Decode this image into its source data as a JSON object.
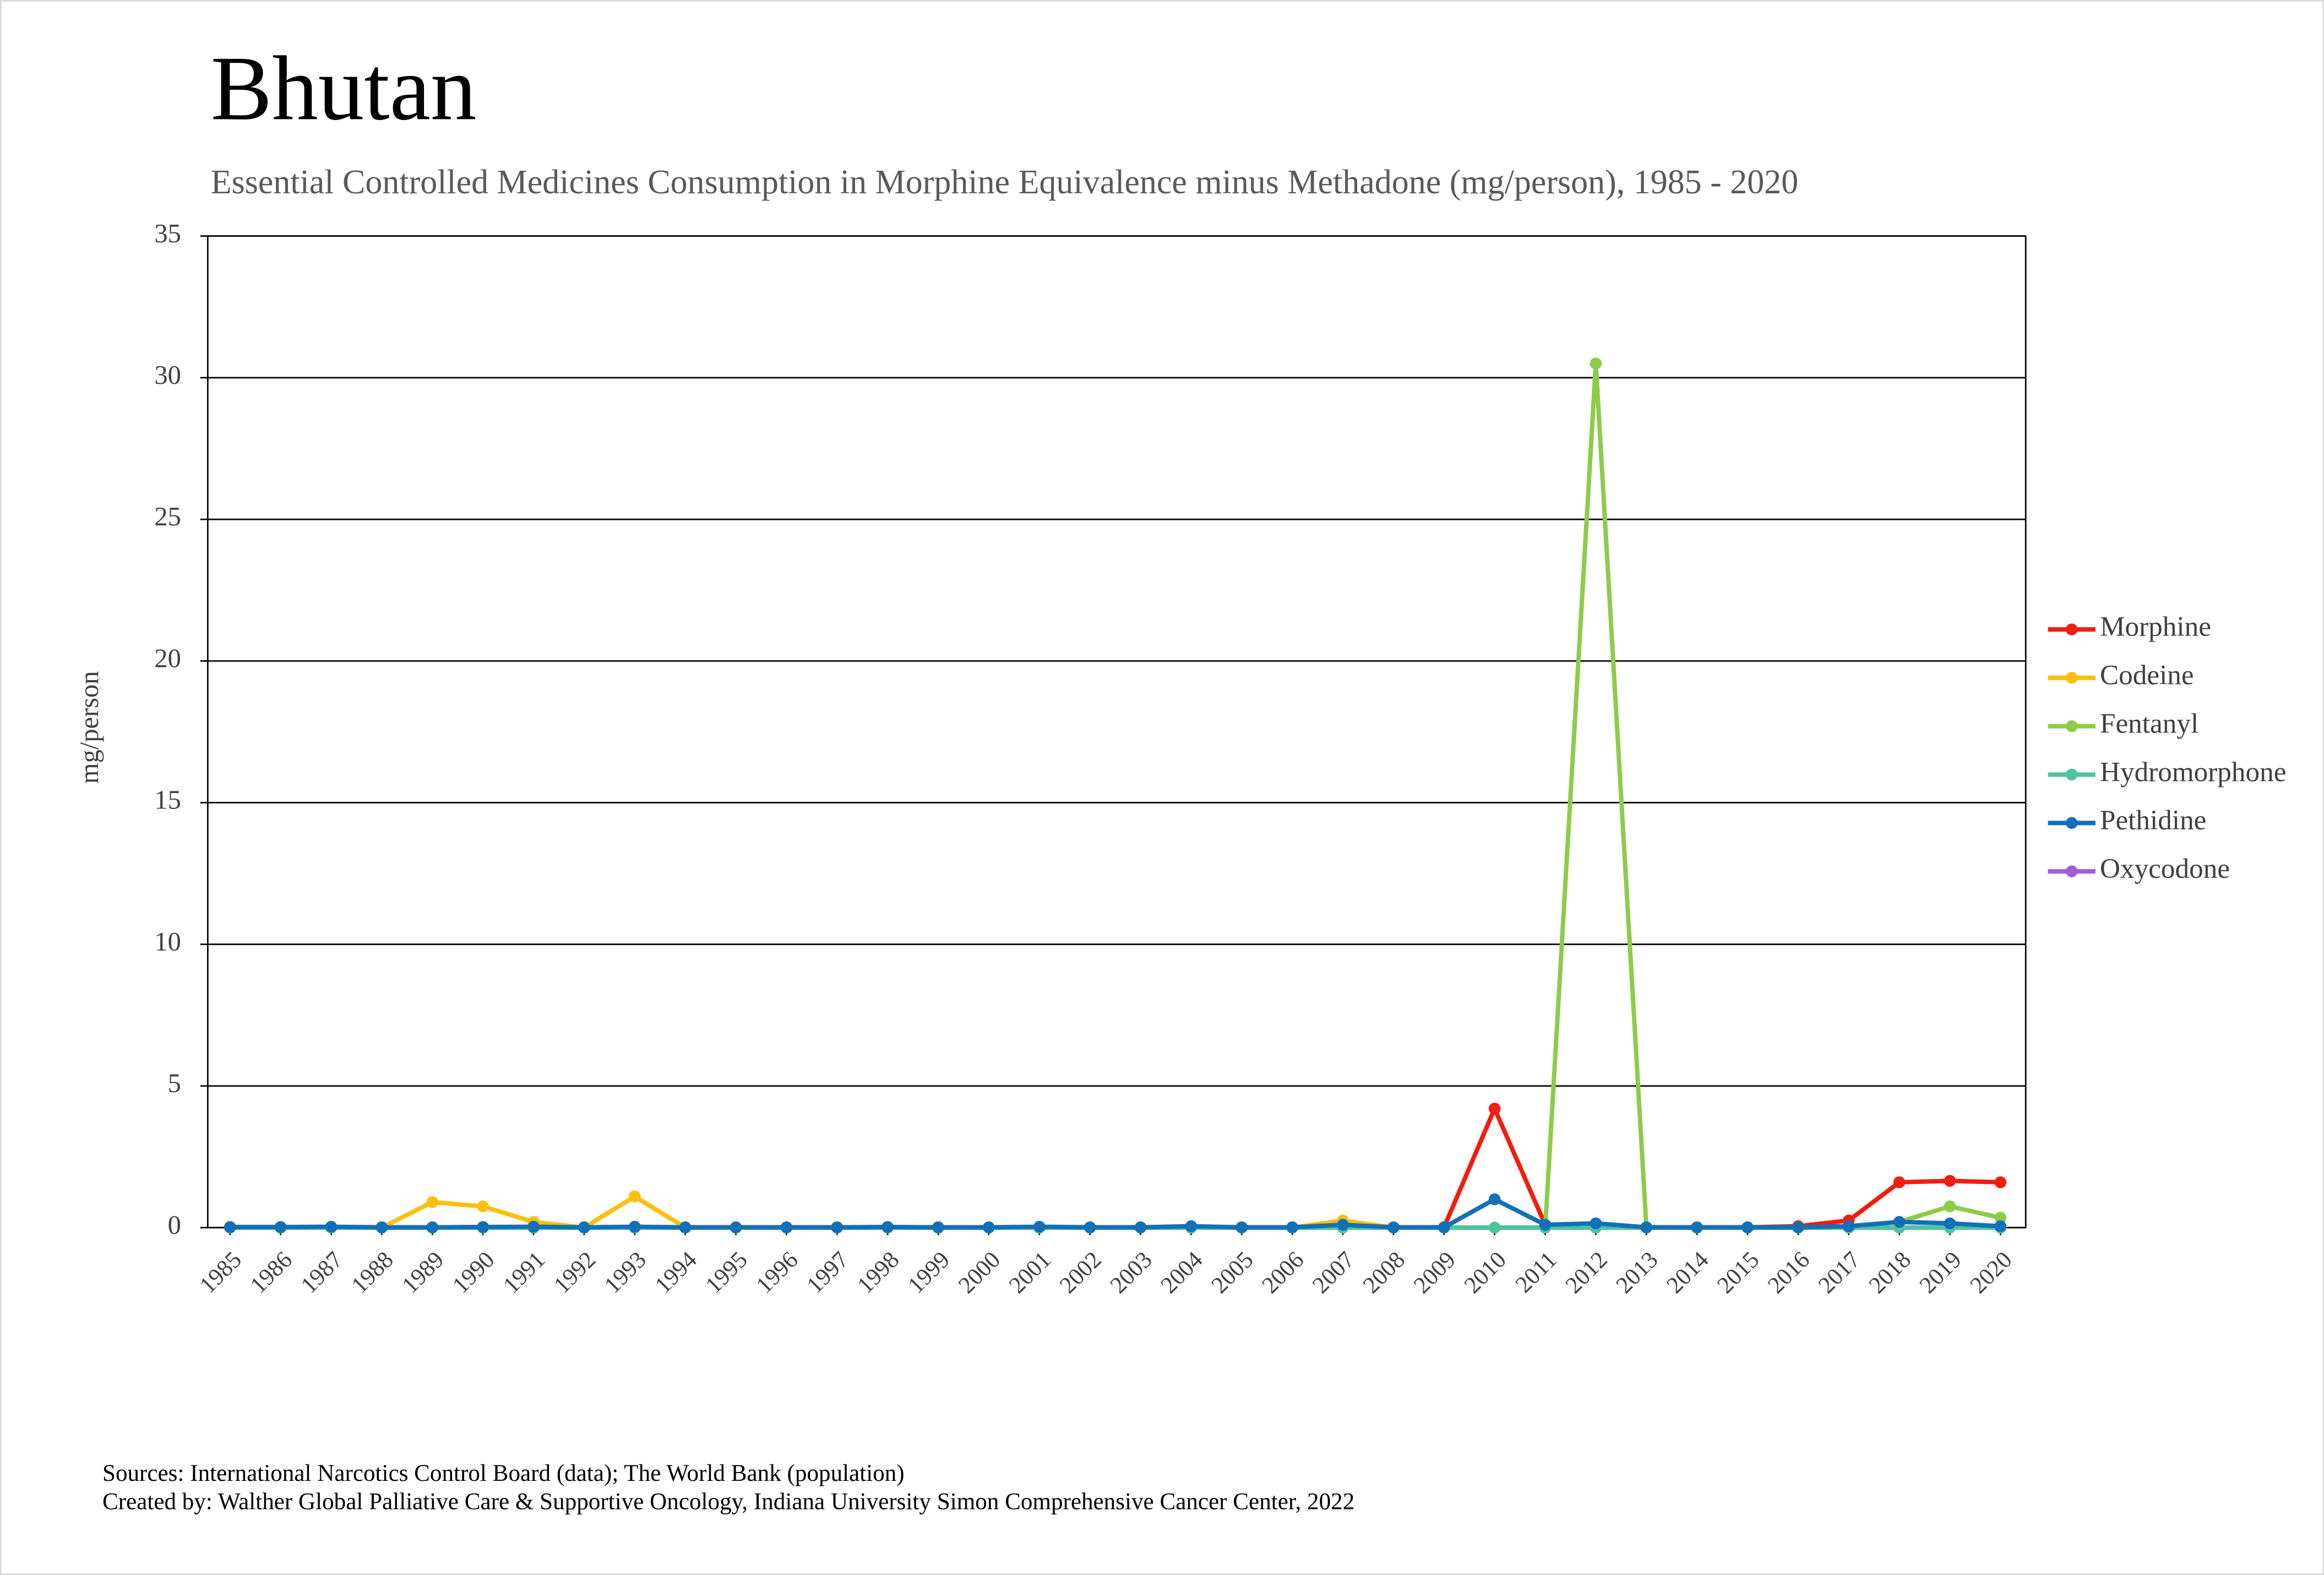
{
  "chart_data": {
    "type": "line",
    "title": "Bhutan",
    "subtitle": "Essential Controlled Medicines Consumption in Morphine Equivalence minus Methadone (mg/person), 1985 - 2020",
    "y_label": "mg/person",
    "categories": [
      "1985",
      "1986",
      "1987",
      "1988",
      "1989",
      "1990",
      "1991",
      "1992",
      "1993",
      "1994",
      "1995",
      "1996",
      "1997",
      "1998",
      "1999",
      "2000",
      "2001",
      "2002",
      "2003",
      "2004",
      "2005",
      "2006",
      "2007",
      "2008",
      "2009",
      "2010",
      "2011",
      "2012",
      "2013",
      "2014",
      "2015",
      "2016",
      "2017",
      "2018",
      "2019",
      "2020"
    ],
    "series": [
      {
        "name": "Morphine",
        "color": "#f01e10",
        "values": [
          0.02,
          0.02,
          0.02,
          0.01,
          0.01,
          0.02,
          0.02,
          0.01,
          0.02,
          0.01,
          0.01,
          0.01,
          0.01,
          0.02,
          0.01,
          0.01,
          0.02,
          0.01,
          0.01,
          0.03,
          0.01,
          0.01,
          0.05,
          0.01,
          0.01,
          4.2,
          0.1,
          0.1,
          0.01,
          0.01,
          0.01,
          0.05,
          0.25,
          1.6,
          1.65,
          1.6
        ]
      },
      {
        "name": "Codeine",
        "color": "#fbbf0e",
        "values": [
          0,
          0,
          0,
          0,
          0.9,
          0.75,
          0.2,
          0,
          1.1,
          0,
          0,
          0,
          0,
          0,
          0,
          0,
          0,
          0,
          0,
          0,
          0,
          0,
          0.25,
          0,
          0,
          0,
          0,
          0,
          0,
          0,
          0,
          0,
          0,
          0,
          0,
          0
        ]
      },
      {
        "name": "Fentanyl",
        "color": "#8ccc4a",
        "values": [
          0,
          0,
          0,
          0,
          0,
          0,
          0,
          0,
          0,
          0,
          0,
          0,
          0,
          0,
          0,
          0,
          0,
          0,
          0,
          0,
          0,
          0,
          0.05,
          0,
          0,
          0,
          0,
          30.5,
          0,
          0,
          0,
          0,
          0.05,
          0.2,
          0.75,
          0.35
        ]
      },
      {
        "name": "Hydromorphone",
        "color": "#4fc3a0",
        "values": [
          0,
          0,
          0,
          0,
          0,
          0,
          0,
          0,
          0,
          0,
          0,
          0,
          0,
          0,
          0,
          0,
          0,
          0,
          0,
          0,
          0,
          0,
          0,
          0,
          0,
          0,
          0,
          0,
          0,
          0,
          0,
          0,
          0,
          0,
          0,
          0
        ]
      },
      {
        "name": "Pethidine",
        "color": "#1170b8",
        "values": [
          0.02,
          0.02,
          0.03,
          0.01,
          0.01,
          0.02,
          0.03,
          0.01,
          0.03,
          0.01,
          0.01,
          0.01,
          0.01,
          0.02,
          0.01,
          0.01,
          0.03,
          0.01,
          0.01,
          0.05,
          0.01,
          0.01,
          0.1,
          0.01,
          0.01,
          1.0,
          0.1,
          0.15,
          0.01,
          0.01,
          0.01,
          0.01,
          0.05,
          0.2,
          0.15,
          0.05
        ]
      },
      {
        "name": "Oxycodone",
        "color": "#a45bd6",
        "values": [
          0,
          0,
          0,
          0,
          0,
          0,
          0,
          0,
          0,
          0,
          0,
          0,
          0,
          0,
          0,
          0,
          0,
          0,
          0,
          0,
          0,
          0,
          0,
          0,
          0,
          0,
          0,
          0,
          0,
          0,
          0,
          0,
          0,
          0,
          0,
          0
        ]
      }
    ],
    "ylim": [
      0,
      35
    ],
    "yticks": [
      0,
      5,
      10,
      15,
      20,
      25,
      30,
      35
    ],
    "grid": true,
    "legend": "right",
    "sources": "Sources: International Narcotics Control Board (data); The World Bank (population)",
    "created_by": "Created by: Walther Global Palliative Care & Supportive Oncology, Indiana University Simon Comprehensive Cancer Center, 2022"
  }
}
